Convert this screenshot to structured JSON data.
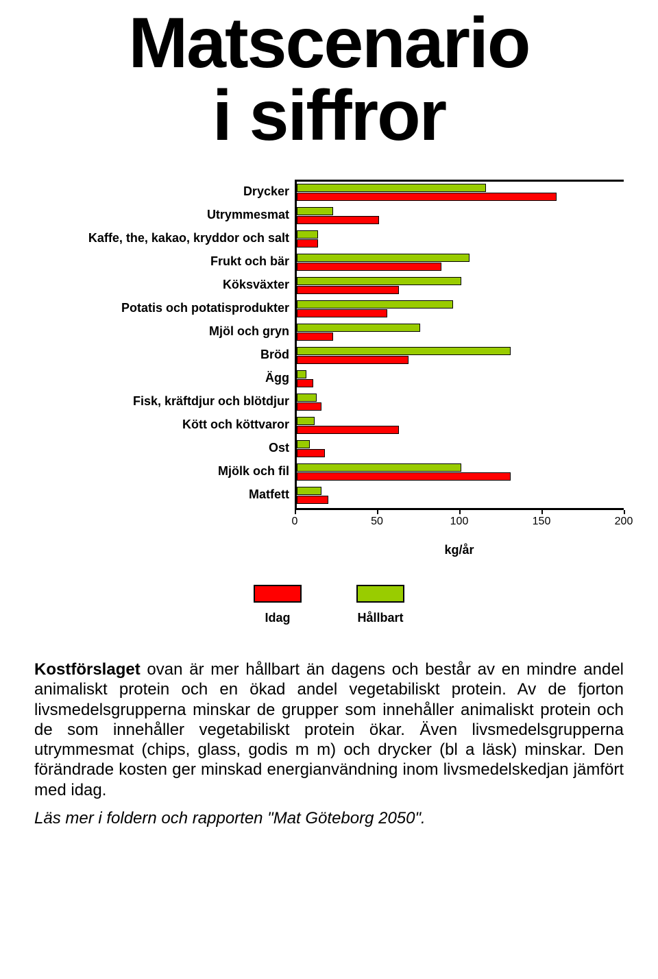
{
  "title_line1": "Matscenario",
  "title_line2": "i siffror",
  "chart": {
    "type": "bar",
    "x_unit": "kg/år",
    "xlim": [
      0,
      200
    ],
    "xtick_step": 50,
    "xticks": [
      0,
      50,
      100,
      150,
      200
    ],
    "bar_border": "#000000",
    "series": [
      {
        "key": "hallbart",
        "label": "Hållbart",
        "color": "#99cc00"
      },
      {
        "key": "idag",
        "label": "Idag",
        "color": "#ff0000"
      }
    ],
    "legend_order": [
      "idag",
      "hallbart"
    ],
    "categories": [
      {
        "label": "Drycker",
        "hallbart": 115,
        "idag": 158
      },
      {
        "label": "Utrymmesmat",
        "hallbart": 22,
        "idag": 50
      },
      {
        "label": "Kaffe, the, kakao, kryddor och salt",
        "hallbart": 13,
        "idag": 13
      },
      {
        "label": "Frukt och bär",
        "hallbart": 105,
        "idag": 88
      },
      {
        "label": "Köksväxter",
        "hallbart": 100,
        "idag": 62
      },
      {
        "label": "Potatis och potatisprodukter",
        "hallbart": 95,
        "idag": 55
      },
      {
        "label": "Mjöl och gryn",
        "hallbart": 75,
        "idag": 22
      },
      {
        "label": "Bröd",
        "hallbart": 130,
        "idag": 68
      },
      {
        "label": "Ägg",
        "hallbart": 6,
        "idag": 10
      },
      {
        "label": "Fisk, kräftdjur och blötdjur",
        "hallbart": 12,
        "idag": 15
      },
      {
        "label": "Kött och köttvaror",
        "hallbart": 11,
        "idag": 62
      },
      {
        "label": "Ost",
        "hallbart": 8,
        "idag": 17
      },
      {
        "label": "Mjölk och fil",
        "hallbart": 100,
        "idag": 130
      },
      {
        "label": "Matfett",
        "hallbart": 15,
        "idag": 19
      }
    ]
  },
  "body": {
    "p1_lead": "Kostförslaget",
    "p1_rest": " ovan är mer hållbart än dagens och består av en mindre andel animaliskt protein och en ökad andel vegetabiliskt protein. Av de fjorton livsmedelsgrupperna minskar de grupper som innehåller animaliskt protein och de som innehåller vegetabiliskt protein ökar. Även livsmedelsgrupperna utrymmesmat (chips, glass, godis m m) och drycker (bl a läsk) minskar. Den förändrade kosten ger minskad energianvändning inom livsmedelskedjan jämfört med idag.",
    "p2_italic": "Läs mer i foldern och rapporten \"Mat Göteborg 2050\"."
  }
}
